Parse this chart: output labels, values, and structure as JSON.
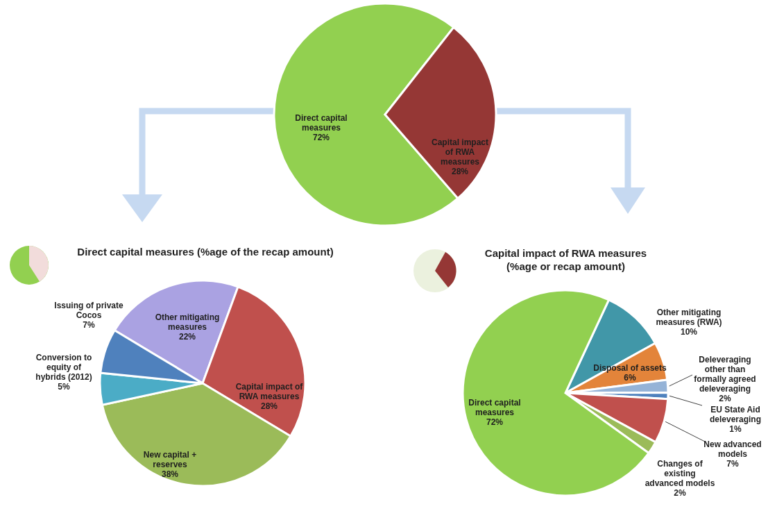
{
  "chart_data": [
    {
      "type": "pie",
      "categories": [
        "Direct capital measures",
        "Capital impact of RWA measures"
      ],
      "values": [
        72,
        28
      ],
      "value_labels": [
        "72%",
        "28%"
      ],
      "colors": [
        "#92d050",
        "#953735"
      ]
    },
    {
      "type": "pie",
      "title": "Direct capital measures (%age of the recap amount)",
      "categories": [
        "Other mitigating measures",
        "Capital impact of RWA measures",
        "New capital + reserves",
        "Conversion to equity of hybrids (2012)",
        "Issuing of private Cocos"
      ],
      "values": [
        22,
        28,
        38,
        5,
        7
      ],
      "value_labels": [
        "22%",
        "28%",
        "38%",
        "5%",
        "7%"
      ],
      "colors": [
        "#aaa2e2",
        "#c0504d",
        "#9bbb59",
        "#4bacc6",
        "#4f81bd"
      ]
    },
    {
      "type": "pie",
      "title": "Capital impact of RWA measures",
      "subtitle": "(%age or recap amount)",
      "categories": [
        "Other mitigating measures (RWA)",
        "Disposal of assets",
        "Deleveraging other than formally agreed deleveraging",
        "EU State Aid deleveraging",
        "New advanced models",
        "Changes  of existing advanced models",
        "Direct capital measures"
      ],
      "values": [
        10,
        6,
        2,
        1,
        7,
        2,
        72
      ],
      "value_labels": [
        "10%",
        "6%",
        "2%",
        "1%",
        "7%",
        "2%",
        "72%"
      ],
      "colors": [
        "#4197a8",
        "#e3843a",
        "#95b3d7",
        "#4f81bd",
        "#c0504d",
        "#9bbb59",
        "#92d050"
      ]
    }
  ]
}
